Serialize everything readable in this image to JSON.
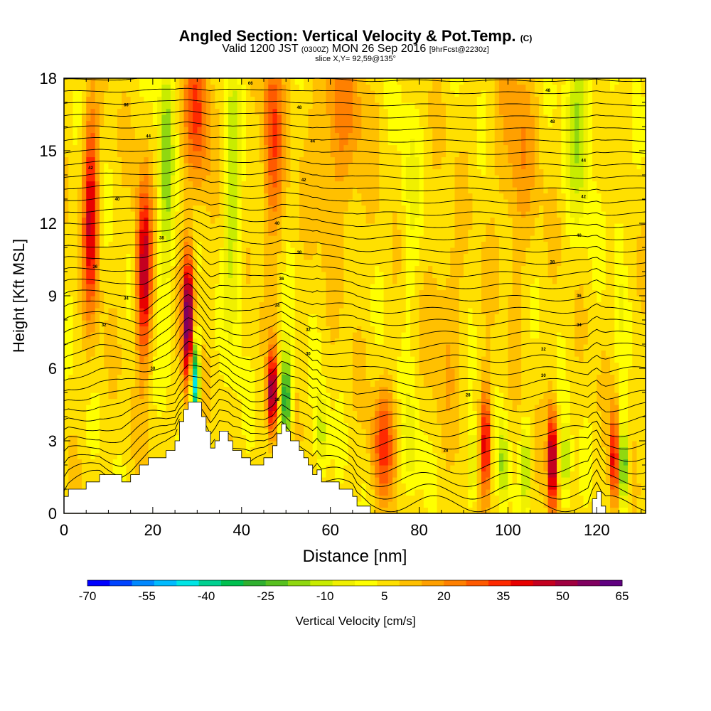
{
  "title": {
    "main": "Angled Section: Vertical Velocity & Pot.Temp.",
    "main_unit": "(C)",
    "valid_prefix": "Valid 1200 JST",
    "valid_utc": "(0300Z)",
    "valid_date": "MON 26 Sep 2016",
    "forecast": "[9hrFcst@2230z]",
    "slice": "slice X,Y= 92,59@135°"
  },
  "chart_data": {
    "type": "heatmap",
    "xlabel": "Distance [nm]",
    "ylabel": "Height [Kft MSL]",
    "xlim": [
      0,
      131
    ],
    "ylim": [
      0,
      18
    ],
    "x_ticks": [
      0,
      20,
      40,
      60,
      80,
      100,
      120
    ],
    "y_ticks": [
      0,
      3,
      6,
      9,
      12,
      15,
      18
    ],
    "colorbar": {
      "label": "Vertical Velocity [cm/s]",
      "tick_labels": [
        "-70",
        "-55",
        "-40",
        "-25",
        "-10",
        "5",
        "20",
        "35",
        "50",
        "65"
      ],
      "colors": [
        "#0000ff",
        "#0044ff",
        "#0088ff",
        "#00bbff",
        "#00e5e5",
        "#00d090",
        "#00c050",
        "#30b030",
        "#58c020",
        "#90d810",
        "#c8ec00",
        "#f0f000",
        "#ffff00",
        "#ffe000",
        "#ffc000",
        "#ffa000",
        "#ff8000",
        "#ff5a00",
        "#ff2a00",
        "#e80000",
        "#c40020",
        "#a00040",
        "#800060",
        "#600080"
      ]
    },
    "terrain": [
      {
        "x": 0,
        "h": 0.7
      },
      {
        "x": 1,
        "h": 1.0
      },
      {
        "x": 5,
        "h": 1.3
      },
      {
        "x": 8,
        "h": 1.6
      },
      {
        "x": 13,
        "h": 1.3
      },
      {
        "x": 15,
        "h": 1.6
      },
      {
        "x": 17,
        "h": 2.0
      },
      {
        "x": 19,
        "h": 2.3
      },
      {
        "x": 23,
        "h": 2.6
      },
      {
        "x": 25,
        "h": 3.0
      },
      {
        "x": 26,
        "h": 3.8
      },
      {
        "x": 27,
        "h": 4.3
      },
      {
        "x": 28,
        "h": 4.6
      },
      {
        "x": 31,
        "h": 4.0
      },
      {
        "x": 32,
        "h": 3.4
      },
      {
        "x": 33,
        "h": 2.7
      },
      {
        "x": 34,
        "h": 3.0
      },
      {
        "x": 35,
        "h": 3.4
      },
      {
        "x": 37,
        "h": 3.0
      },
      {
        "x": 38,
        "h": 2.6
      },
      {
        "x": 40,
        "h": 2.3
      },
      {
        "x": 42,
        "h": 2.0
      },
      {
        "x": 45,
        "h": 2.3
      },
      {
        "x": 47,
        "h": 2.8
      },
      {
        "x": 48,
        "h": 3.3
      },
      {
        "x": 49,
        "h": 3.7
      },
      {
        "x": 50,
        "h": 3.4
      },
      {
        "x": 51,
        "h": 3.0
      },
      {
        "x": 53,
        "h": 2.6
      },
      {
        "x": 54,
        "h": 2.3
      },
      {
        "x": 55,
        "h": 2.0
      },
      {
        "x": 56,
        "h": 1.6
      },
      {
        "x": 57,
        "h": 1.8
      },
      {
        "x": 58,
        "h": 1.3
      },
      {
        "x": 62,
        "h": 1.0
      },
      {
        "x": 65,
        "h": 0.7
      },
      {
        "x": 66,
        "h": 0.3
      },
      {
        "x": 69,
        "h": 0.0
      },
      {
        "x": 118,
        "h": 0.0
      },
      {
        "x": 119,
        "h": 0.6
      },
      {
        "x": 120,
        "h": 0.9
      },
      {
        "x": 121,
        "h": 0.3
      },
      {
        "x": 122,
        "h": 0.0
      },
      {
        "x": 131,
        "h": 0.0
      }
    ],
    "velocity_features": [
      {
        "x": 6,
        "y": 12.5,
        "sx": 1.2,
        "sy": 3.0,
        "v": 38
      },
      {
        "x": 18,
        "y": 10.0,
        "sx": 1.2,
        "sy": 2.6,
        "v": 42
      },
      {
        "x": 28,
        "y": 8.0,
        "sx": 0.9,
        "sy": 2.0,
        "v": 58
      },
      {
        "x": 29.5,
        "y": 5.5,
        "sx": 0.7,
        "sy": 1.3,
        "v": -60
      },
      {
        "x": 23,
        "y": 14.5,
        "sx": 1.2,
        "sy": 4.0,
        "v": -22
      },
      {
        "x": 38,
        "y": 13.0,
        "sx": 1.3,
        "sy": 4.0,
        "v": -20
      },
      {
        "x": 30,
        "y": 16.5,
        "sx": 2.0,
        "sy": 2.2,
        "v": 25
      },
      {
        "x": 47,
        "y": 5.0,
        "sx": 0.8,
        "sy": 1.2,
        "v": 50
      },
      {
        "x": 50,
        "y": 4.8,
        "sx": 0.9,
        "sy": 1.5,
        "v": -40
      },
      {
        "x": 47,
        "y": 15.5,
        "sx": 1.6,
        "sy": 3.0,
        "v": 25
      },
      {
        "x": 58,
        "y": 3.2,
        "sx": 1.0,
        "sy": 1.2,
        "v": -18
      },
      {
        "x": 72,
        "y": 2.8,
        "sx": 1.8,
        "sy": 1.6,
        "v": 25
      },
      {
        "x": 78,
        "y": 2.6,
        "sx": 1.4,
        "sy": 1.6,
        "v": -12
      },
      {
        "x": 95,
        "y": 3.0,
        "sx": 0.8,
        "sy": 1.6,
        "v": 38
      },
      {
        "x": 92,
        "y": 2.0,
        "sx": 0.7,
        "sy": 1.2,
        "v": -22
      },
      {
        "x": 99,
        "y": 2.0,
        "sx": 0.8,
        "sy": 1.2,
        "v": -22
      },
      {
        "x": 104,
        "y": 2.0,
        "sx": 0.8,
        "sy": 1.2,
        "v": -20
      },
      {
        "x": 110,
        "y": 2.2,
        "sx": 0.7,
        "sy": 1.5,
        "v": 52
      },
      {
        "x": 113,
        "y": 2.0,
        "sx": 0.8,
        "sy": 1.2,
        "v": -22
      },
      {
        "x": 124,
        "y": 2.2,
        "sx": 0.7,
        "sy": 1.4,
        "v": 40
      },
      {
        "x": 126,
        "y": 2.0,
        "sx": 0.8,
        "sy": 1.2,
        "v": -35
      },
      {
        "x": 116,
        "y": 16.5,
        "sx": 2.0,
        "sy": 3.0,
        "v": -20
      },
      {
        "x": 78,
        "y": 13.0,
        "sx": 1.5,
        "sy": 3.5,
        "v": -8
      },
      {
        "x": 125,
        "y": 10.5,
        "sx": 0.9,
        "sy": 3.0,
        "v": -8
      },
      {
        "x": 62,
        "y": 16.5,
        "sx": 4.0,
        "sy": 3.0,
        "v": 15
      },
      {
        "x": 102,
        "y": 15.0,
        "sx": 3.0,
        "sy": 3.5,
        "v": 12
      },
      {
        "x": 86,
        "y": 8.0,
        "sx": 2.5,
        "sy": 3.0,
        "v": 8
      }
    ],
    "isentropes": {
      "count": 36,
      "spacing_kft": 0.5,
      "labels": [
        {
          "x": 42,
          "y": 17.8,
          "text": "66"
        },
        {
          "x": 109,
          "y": 17.5,
          "text": "48"
        },
        {
          "x": 14,
          "y": 16.9,
          "text": "66"
        },
        {
          "x": 53,
          "y": 16.8,
          "text": "48"
        },
        {
          "x": 110,
          "y": 16.2,
          "text": "48"
        },
        {
          "x": 19,
          "y": 15.6,
          "text": "44"
        },
        {
          "x": 56,
          "y": 15.4,
          "text": "44"
        },
        {
          "x": 6,
          "y": 14.3,
          "text": "42"
        },
        {
          "x": 117,
          "y": 14.6,
          "text": "44"
        },
        {
          "x": 54,
          "y": 13.8,
          "text": "42"
        },
        {
          "x": 12,
          "y": 13.0,
          "text": "40"
        },
        {
          "x": 117,
          "y": 13.1,
          "text": "42"
        },
        {
          "x": 48,
          "y": 12.0,
          "text": "40"
        },
        {
          "x": 116,
          "y": 11.5,
          "text": "40"
        },
        {
          "x": 22,
          "y": 11.4,
          "text": "38"
        },
        {
          "x": 53,
          "y": 10.8,
          "text": "38"
        },
        {
          "x": 7,
          "y": 10.2,
          "text": "36"
        },
        {
          "x": 110,
          "y": 10.4,
          "text": "38"
        },
        {
          "x": 49,
          "y": 9.7,
          "text": "36"
        },
        {
          "x": 14,
          "y": 8.9,
          "text": "34"
        },
        {
          "x": 116,
          "y": 9.0,
          "text": "36"
        },
        {
          "x": 48,
          "y": 8.6,
          "text": "34"
        },
        {
          "x": 9,
          "y": 7.8,
          "text": "32"
        },
        {
          "x": 55,
          "y": 7.6,
          "text": "32"
        },
        {
          "x": 116,
          "y": 7.8,
          "text": "34"
        },
        {
          "x": 55,
          "y": 6.6,
          "text": "30"
        },
        {
          "x": 108,
          "y": 6.8,
          "text": "32"
        },
        {
          "x": 20,
          "y": 6.0,
          "text": "30"
        },
        {
          "x": 108,
          "y": 5.7,
          "text": "30"
        },
        {
          "x": 48,
          "y": 4.7,
          "text": "28"
        },
        {
          "x": 91,
          "y": 4.9,
          "text": "28"
        },
        {
          "x": 86,
          "y": 2.6,
          "text": "28"
        }
      ]
    }
  }
}
